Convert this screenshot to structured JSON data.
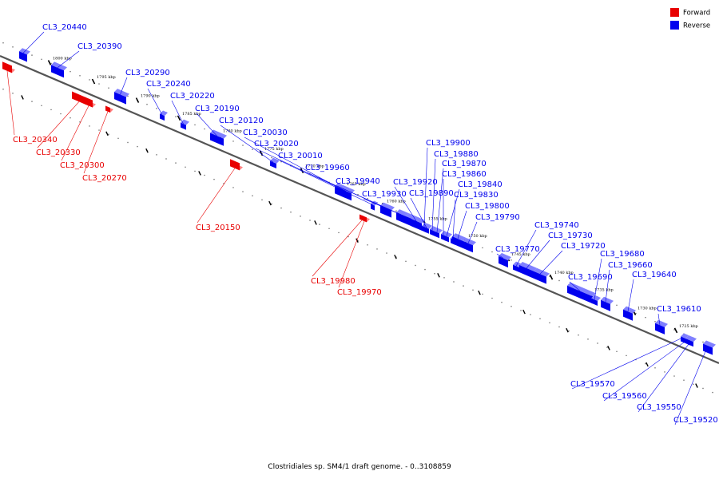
{
  "colors": {
    "forward": "#e80000",
    "reverse": "#0000ee",
    "backbone": "#555555"
  },
  "legend": {
    "forward_label": "Forward",
    "reverse_label": "Reverse"
  },
  "caption": "Clostridiales sp. SM4/1 draft genome. - 0..3108859",
  "ticks": [
    {
      "label": "1800 kbp"
    },
    {
      "label": "1795 kbp"
    },
    {
      "label": "1790 kbp"
    },
    {
      "label": "1785 kbp"
    },
    {
      "label": "1780 kbp"
    },
    {
      "label": "1775 kbp"
    },
    {
      "label": "1770 kbp"
    },
    {
      "label": "1765 kbp"
    },
    {
      "label": "1760 kbp"
    },
    {
      "label": "1755 kbp"
    },
    {
      "label": "1750 kbp"
    },
    {
      "label": "1745 kbp"
    },
    {
      "label": "1740 kbp"
    },
    {
      "label": "1735 kbp"
    },
    {
      "label": "1730 kbp"
    },
    {
      "label": "1725 kbp"
    }
  ],
  "genes": [
    {
      "label": "CL3_20440",
      "strand": "reverse"
    },
    {
      "label": "CL3_20390",
      "strand": "reverse"
    },
    {
      "label": "CL3_20290",
      "strand": "reverse"
    },
    {
      "label": "CL3_20240",
      "strand": "reverse"
    },
    {
      "label": "CL3_20220",
      "strand": "reverse"
    },
    {
      "label": "CL3_20190",
      "strand": "reverse"
    },
    {
      "label": "CL3_20120",
      "strand": "reverse"
    },
    {
      "label": "CL3_20030",
      "strand": "reverse"
    },
    {
      "label": "CL3_20020",
      "strand": "reverse"
    },
    {
      "label": "CL3_20010",
      "strand": "reverse"
    },
    {
      "label": "CL3_19960",
      "strand": "reverse"
    },
    {
      "label": "CL3_19940",
      "strand": "reverse"
    },
    {
      "label": "CL3_19930",
      "strand": "reverse"
    },
    {
      "label": "CL3_19920",
      "strand": "reverse"
    },
    {
      "label": "CL3_19900",
      "strand": "reverse"
    },
    {
      "label": "CL3_19890",
      "strand": "reverse"
    },
    {
      "label": "CL3_19880",
      "strand": "reverse"
    },
    {
      "label": "CL3_19870",
      "strand": "reverse"
    },
    {
      "label": "CL3_19860",
      "strand": "reverse"
    },
    {
      "label": "CL3_19840",
      "strand": "reverse"
    },
    {
      "label": "CL3_19830",
      "strand": "reverse"
    },
    {
      "label": "CL3_19800",
      "strand": "reverse"
    },
    {
      "label": "CL3_19790",
      "strand": "reverse"
    },
    {
      "label": "CL3_19770",
      "strand": "reverse"
    },
    {
      "label": "CL3_19740",
      "strand": "reverse"
    },
    {
      "label": "CL3_19730",
      "strand": "reverse"
    },
    {
      "label": "CL3_19720",
      "strand": "reverse"
    },
    {
      "label": "CL3_19690",
      "strand": "reverse"
    },
    {
      "label": "CL3_19680",
      "strand": "reverse"
    },
    {
      "label": "CL3_19660",
      "strand": "reverse"
    },
    {
      "label": "CL3_19640",
      "strand": "reverse"
    },
    {
      "label": "CL3_19610",
      "strand": "reverse"
    },
    {
      "label": "CL3_19570",
      "strand": "reverse"
    },
    {
      "label": "CL3_19560",
      "strand": "reverse"
    },
    {
      "label": "CL3_19550",
      "strand": "reverse"
    },
    {
      "label": "CL3_19520",
      "strand": "reverse"
    },
    {
      "label": "CL3_20340",
      "strand": "forward"
    },
    {
      "label": "CL3_20330",
      "strand": "forward"
    },
    {
      "label": "CL3_20300",
      "strand": "forward"
    },
    {
      "label": "CL3_20270",
      "strand": "forward"
    },
    {
      "label": "CL3_20150",
      "strand": "forward"
    },
    {
      "label": "CL3_19980",
      "strand": "forward"
    },
    {
      "label": "CL3_19970",
      "strand": "forward"
    }
  ]
}
